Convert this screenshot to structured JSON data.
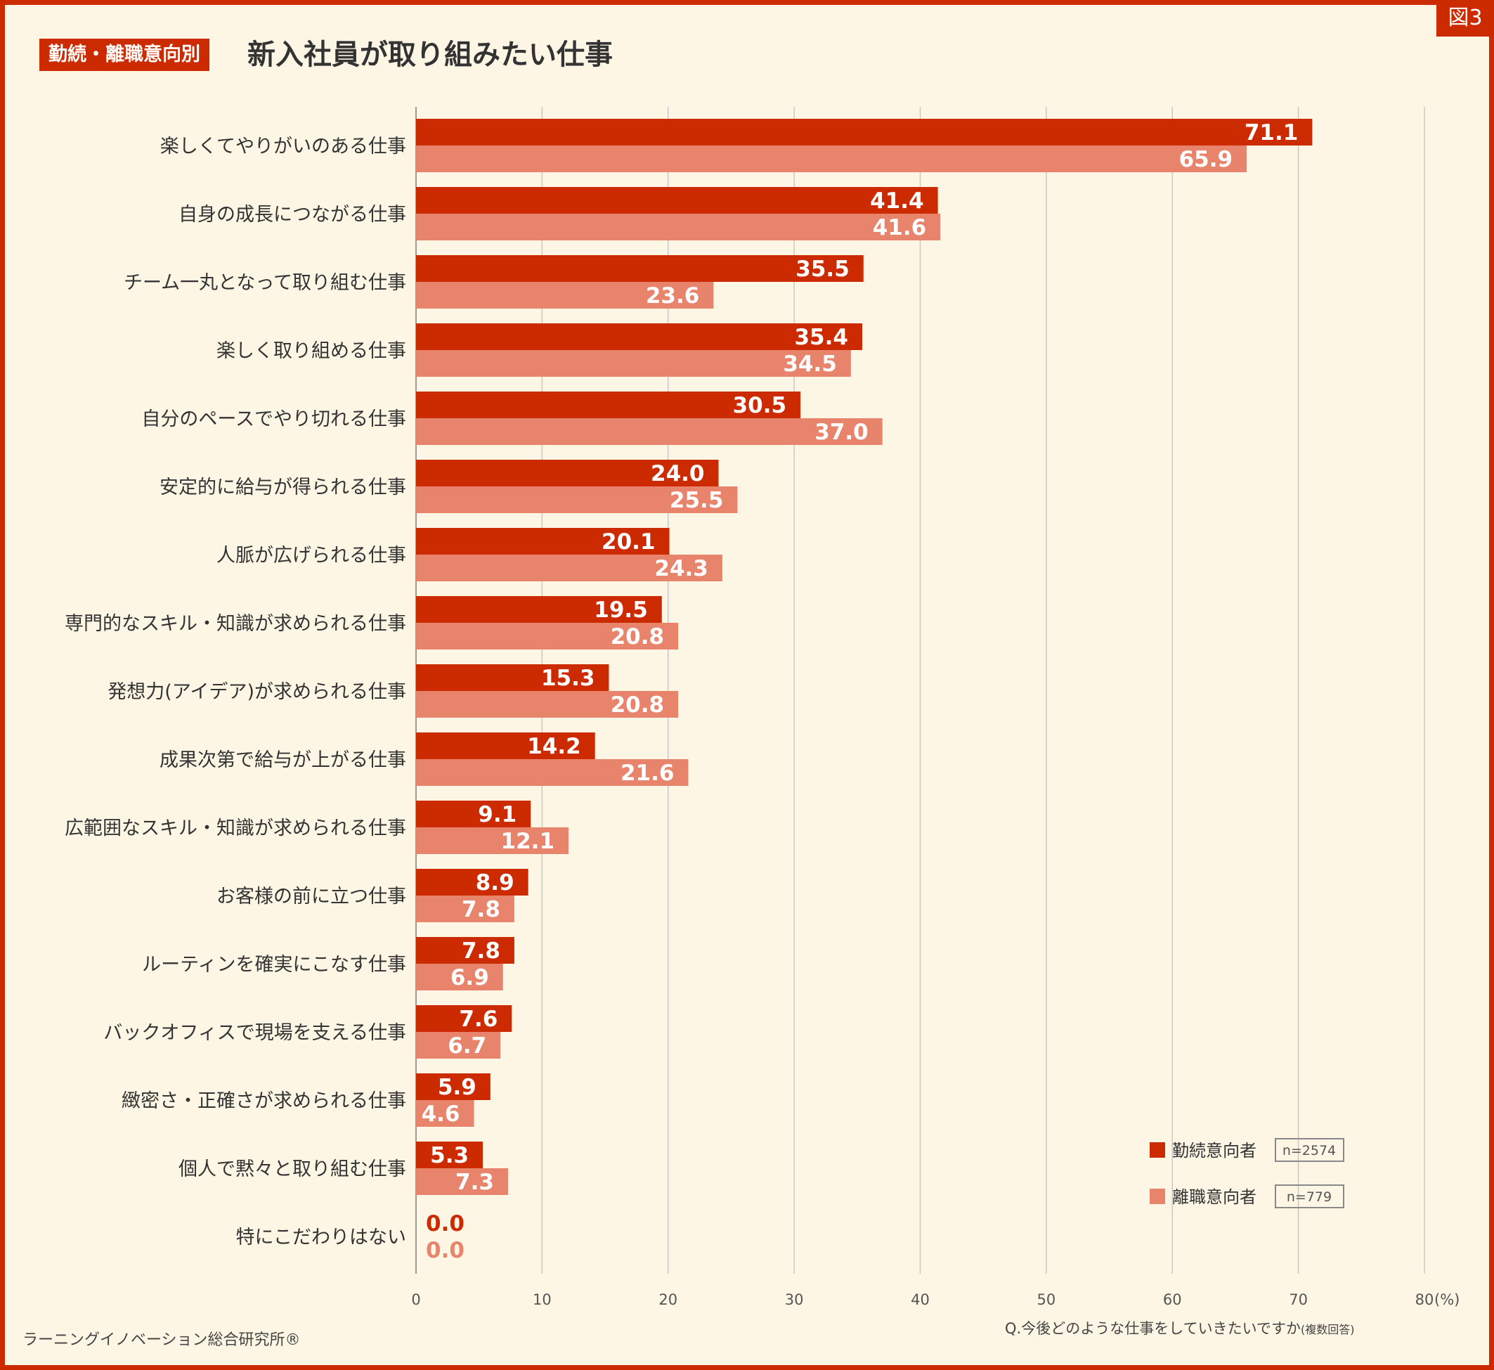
{
  "figure_label": "図3",
  "category_tag": "勤続・離職意向別",
  "title": "新入社員が取り組みたい仕事",
  "source": "ラーニングイノベーション総合研究所®",
  "question": "Q.今後どのような仕事をしていきたいですか",
  "question_note": "(複数回答)",
  "colors": {
    "continue": "#cc2a00",
    "leave": "#e8836c",
    "frame": "#cc2a00",
    "background": "#fdf6e4",
    "grid": "#c8c8c8"
  },
  "chart_data": {
    "type": "bar",
    "orientation": "horizontal",
    "categories": [
      "楽しくてやりがいのある仕事",
      "自身の成長につながる仕事",
      "チーム一丸となって取り組む仕事",
      "楽しく取り組める仕事",
      "自分のペースでやり切れる仕事",
      "安定的に給与が得られる仕事",
      "人脈が広げられる仕事",
      "専門的なスキル・知識が求められる仕事",
      "発想力(アイデア)が求められる仕事",
      "成果次第で給与が上がる仕事",
      "広範囲なスキル・知識が求められる仕事",
      "お客様の前に立つ仕事",
      "ルーティンを確実にこなす仕事",
      "バックオフィスで現場を支える仕事",
      "緻密さ・正確さが求められる仕事",
      "個人で黙々と取り組む仕事",
      "特にこだわりはない"
    ],
    "series": [
      {
        "name": "勤続意向者",
        "n": "n=2574",
        "color": "#cc2a00",
        "values": [
          71.1,
          41.4,
          35.5,
          35.4,
          30.5,
          24.0,
          20.1,
          19.5,
          15.3,
          14.2,
          9.1,
          8.9,
          7.8,
          7.6,
          5.9,
          5.3,
          0.0
        ]
      },
      {
        "name": "離職意向者",
        "n": "n=779",
        "color": "#e8836c",
        "values": [
          65.9,
          41.6,
          23.6,
          34.5,
          37.0,
          25.5,
          24.3,
          20.8,
          20.8,
          21.6,
          12.1,
          7.8,
          6.9,
          6.7,
          4.6,
          7.3,
          0.0
        ]
      }
    ],
    "xlim": [
      0,
      80
    ],
    "x_ticks": [
      "0",
      "10",
      "20",
      "30",
      "40",
      "50",
      "60",
      "70",
      "80"
    ],
    "x_unit": "(%)",
    "grid": true,
    "legend_position": "bottom-right"
  }
}
